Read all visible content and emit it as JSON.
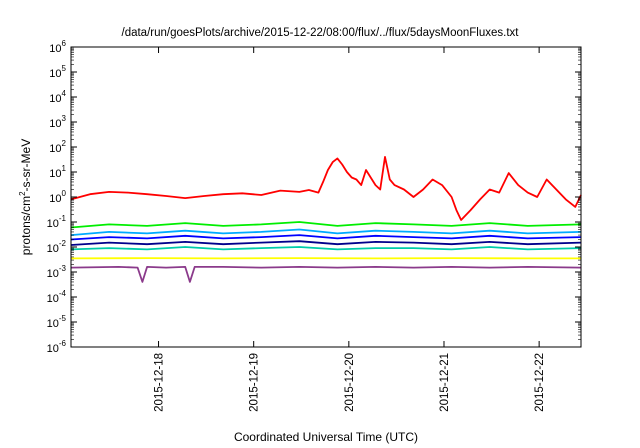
{
  "chart_data": {
    "type": "line",
    "title": "/data/run/goesPlots/archive/2015-12-22/08:00/flux/../flux/5daysMoonFluxes.txt",
    "xlabel": "Coordinated Universal Time (UTC)",
    "ylabel": {
      "prefix": "protons/cm",
      "sup": "2",
      "suffix": "-s-sr-MeV"
    },
    "yscale": "log",
    "ylim_exponent": [
      -6,
      6
    ],
    "ytick_exponents": [
      -6,
      -5,
      -4,
      -3,
      -2,
      -1,
      0,
      1,
      2,
      3,
      4,
      5,
      6
    ],
    "ytick_base": "10",
    "xlim_days": [
      0,
      5.36
    ],
    "xticks": [
      {
        "label": "2015-12-18",
        "day": 0.92
      },
      {
        "label": "2015-12-19",
        "day": 1.92
      },
      {
        "label": "2015-12-20",
        "day": 2.92
      },
      {
        "label": "2015-12-21",
        "day": 3.92
      },
      {
        "label": "2015-12-22",
        "day": 4.92
      }
    ],
    "grid": false,
    "legend": "none",
    "series": [
      {
        "color": "#ff0000",
        "points": [
          [
            0,
            0.8
          ],
          [
            0.2,
            1.3
          ],
          [
            0.4,
            1.6
          ],
          [
            0.6,
            1.5
          ],
          [
            0.8,
            1.3
          ],
          [
            1.0,
            1.1
          ],
          [
            1.2,
            0.9
          ],
          [
            1.4,
            1.1
          ],
          [
            1.6,
            1.3
          ],
          [
            1.8,
            1.4
          ],
          [
            2.0,
            1.2
          ],
          [
            2.2,
            1.8
          ],
          [
            2.4,
            1.6
          ],
          [
            2.5,
            1.9
          ],
          [
            2.6,
            1.5
          ],
          [
            2.65,
            4
          ],
          [
            2.7,
            12
          ],
          [
            2.75,
            25
          ],
          [
            2.8,
            35
          ],
          [
            2.85,
            20
          ],
          [
            2.9,
            10
          ],
          [
            2.95,
            6
          ],
          [
            3.0,
            5
          ],
          [
            3.05,
            3
          ],
          [
            3.1,
            12
          ],
          [
            3.15,
            6
          ],
          [
            3.2,
            3
          ],
          [
            3.25,
            2
          ],
          [
            3.3,
            40
          ],
          [
            3.35,
            5
          ],
          [
            3.4,
            3
          ],
          [
            3.5,
            2
          ],
          [
            3.6,
            1
          ],
          [
            3.7,
            2
          ],
          [
            3.8,
            5
          ],
          [
            3.9,
            3
          ],
          [
            4.0,
            1
          ],
          [
            4.05,
            0.3
          ],
          [
            4.1,
            0.12
          ],
          [
            4.2,
            0.3
          ],
          [
            4.3,
            0.8
          ],
          [
            4.4,
            2
          ],
          [
            4.5,
            1.5
          ],
          [
            4.6,
            9
          ],
          [
            4.7,
            3
          ],
          [
            4.8,
            1.5
          ],
          [
            4.9,
            1
          ],
          [
            5.0,
            5
          ],
          [
            5.1,
            2
          ],
          [
            5.2,
            0.8
          ],
          [
            5.3,
            0.4
          ],
          [
            5.36,
            1.2
          ]
        ]
      },
      {
        "color": "#00ee00",
        "points": [
          [
            0,
            0.06
          ],
          [
            0.4,
            0.08
          ],
          [
            0.8,
            0.07
          ],
          [
            1.2,
            0.09
          ],
          [
            1.6,
            0.07
          ],
          [
            2.0,
            0.08
          ],
          [
            2.4,
            0.1
          ],
          [
            2.8,
            0.07
          ],
          [
            3.2,
            0.09
          ],
          [
            3.6,
            0.08
          ],
          [
            4.0,
            0.07
          ],
          [
            4.4,
            0.09
          ],
          [
            4.8,
            0.07
          ],
          [
            5.36,
            0.08
          ]
        ]
      },
      {
        "color": "#00aaff",
        "points": [
          [
            0,
            0.03
          ],
          [
            0.4,
            0.04
          ],
          [
            0.8,
            0.035
          ],
          [
            1.2,
            0.045
          ],
          [
            1.6,
            0.035
          ],
          [
            2.0,
            0.04
          ],
          [
            2.4,
            0.05
          ],
          [
            2.8,
            0.035
          ],
          [
            3.2,
            0.045
          ],
          [
            3.6,
            0.04
          ],
          [
            4.0,
            0.035
          ],
          [
            4.4,
            0.045
          ],
          [
            4.8,
            0.035
          ],
          [
            5.36,
            0.04
          ]
        ]
      },
      {
        "color": "#0000ff",
        "points": [
          [
            0,
            0.02
          ],
          [
            0.4,
            0.025
          ],
          [
            0.8,
            0.022
          ],
          [
            1.2,
            0.028
          ],
          [
            1.6,
            0.022
          ],
          [
            2.0,
            0.025
          ],
          [
            2.4,
            0.03
          ],
          [
            2.8,
            0.022
          ],
          [
            3.2,
            0.028
          ],
          [
            3.6,
            0.025
          ],
          [
            4.0,
            0.022
          ],
          [
            4.4,
            0.028
          ],
          [
            4.8,
            0.022
          ],
          [
            5.36,
            0.025
          ]
        ]
      },
      {
        "color": "#00008b",
        "points": [
          [
            0,
            0.012
          ],
          [
            0.4,
            0.015
          ],
          [
            0.8,
            0.013
          ],
          [
            1.2,
            0.016
          ],
          [
            1.6,
            0.013
          ],
          [
            2.0,
            0.015
          ],
          [
            2.4,
            0.017
          ],
          [
            2.8,
            0.013
          ],
          [
            3.2,
            0.016
          ],
          [
            3.6,
            0.015
          ],
          [
            4.0,
            0.013
          ],
          [
            4.4,
            0.016
          ],
          [
            4.8,
            0.013
          ],
          [
            5.36,
            0.015
          ]
        ]
      },
      {
        "color": "#00ccaa",
        "points": [
          [
            0,
            0.008
          ],
          [
            0.4,
            0.009
          ],
          [
            0.8,
            0.008
          ],
          [
            1.2,
            0.01
          ],
          [
            1.6,
            0.008
          ],
          [
            2.0,
            0.009
          ],
          [
            2.4,
            0.01
          ],
          [
            2.8,
            0.008
          ],
          [
            3.2,
            0.009
          ],
          [
            3.6,
            0.009
          ],
          [
            4.0,
            0.008
          ],
          [
            4.4,
            0.01
          ],
          [
            4.8,
            0.008
          ],
          [
            5.36,
            0.009
          ]
        ]
      },
      {
        "color": "#ffff00",
        "points": [
          [
            0,
            0.0035
          ],
          [
            0.8,
            0.0036
          ],
          [
            1.6,
            0.0035
          ],
          [
            2.4,
            0.0036
          ],
          [
            3.2,
            0.0035
          ],
          [
            4.0,
            0.0036
          ],
          [
            4.8,
            0.0035
          ],
          [
            5.36,
            0.0035
          ]
        ]
      },
      {
        "color": "#8b3a8b",
        "points": [
          [
            0,
            0.0015
          ],
          [
            0.5,
            0.0016
          ],
          [
            0.7,
            0.0015
          ],
          [
            0.75,
            0.0004
          ],
          [
            0.8,
            0.0016
          ],
          [
            1.0,
            0.0015
          ],
          [
            1.2,
            0.0016
          ],
          [
            1.25,
            0.0004
          ],
          [
            1.3,
            0.0016
          ],
          [
            1.6,
            0.0016
          ],
          [
            2.0,
            0.0015
          ],
          [
            2.4,
            0.0016
          ],
          [
            2.8,
            0.0015
          ],
          [
            3.2,
            0.0016
          ],
          [
            3.6,
            0.0015
          ],
          [
            4.0,
            0.0016
          ],
          [
            4.4,
            0.0015
          ],
          [
            4.8,
            0.0016
          ],
          [
            5.36,
            0.0015
          ]
        ]
      }
    ]
  }
}
